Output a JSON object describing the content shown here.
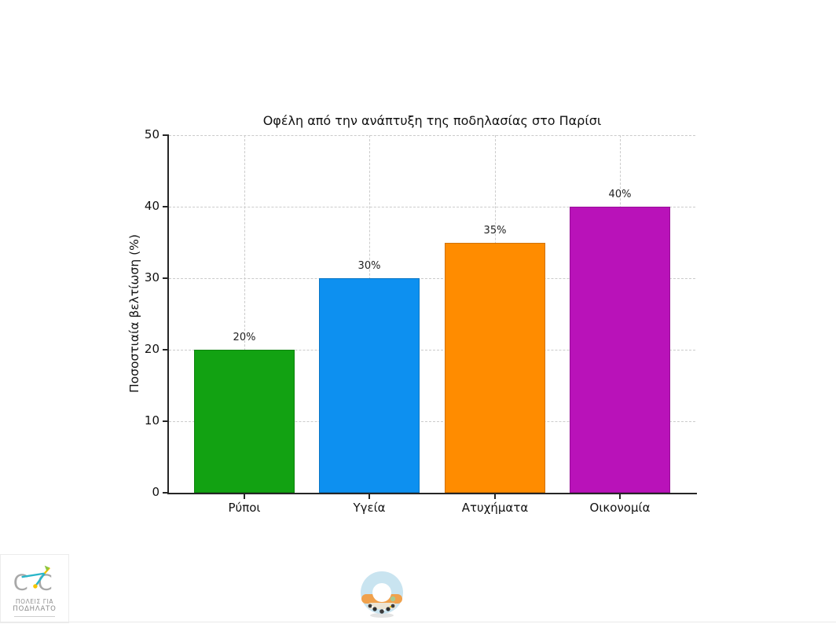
{
  "page": {
    "background": "#ffffff"
  },
  "chart_data": {
    "type": "bar",
    "title": "Οφέλη από την ανάπτυξη της ποδηλασίας στο Παρίσι",
    "xlabel": "",
    "ylabel": "Ποσοστιαία βελτίωση (%)",
    "categories": [
      "Ρύποι",
      "Υγεία",
      "Ατυχήματα",
      "Οικονομία"
    ],
    "values": [
      20,
      30,
      35,
      40
    ],
    "value_labels": [
      "20%",
      "30%",
      "35%",
      "40%"
    ],
    "bar_colors": [
      "#12a212",
      "#0d90f0",
      "#ff8c00",
      "#b912b9"
    ],
    "ylim": [
      0,
      50
    ],
    "yticks": [
      0,
      10,
      20,
      30,
      40,
      50
    ],
    "grid": "dashed, horizontal at yticks and vertical at category centers",
    "legend": "none"
  },
  "footer": {
    "logo": {
      "line1": "ΠΟΛΕΙΣ ΓΙΑ",
      "line2": "ΠΟΔΗΛΑΤΟ"
    }
  },
  "colors": {
    "axis": "#262626",
    "grid": "#cbcbcb",
    "text": "#111111"
  }
}
